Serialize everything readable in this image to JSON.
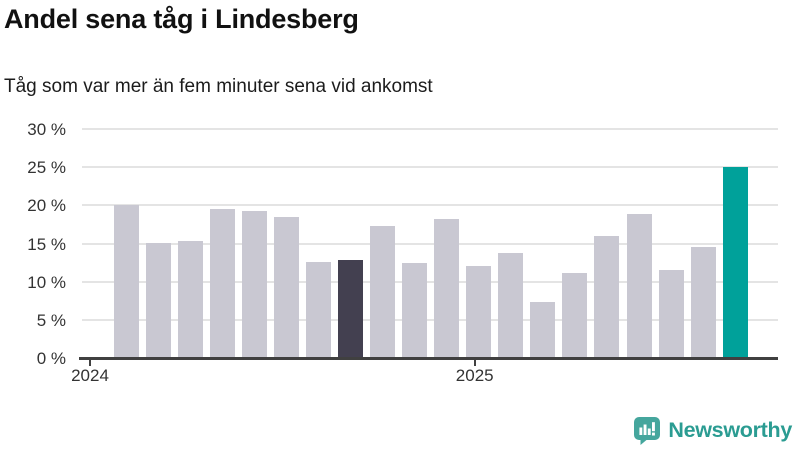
{
  "header": {
    "title": "Andel sena tåg i Lindesberg",
    "subtitle": "Tåg som var mer än fem minuter sena vid ankomst"
  },
  "logo": {
    "text": "Newsworthy",
    "icon": "newsworthy-speech-bubble-bar-chart-icon"
  },
  "colors": {
    "bar_default": "#c9c8d2",
    "bar_highlight_dark": "#434050",
    "bar_highlight_teal": "#00a19a",
    "gridline": "#e4e4e4",
    "axis": "#404040",
    "tick_label": "#333333",
    "logo_teal": "#2b9c92",
    "logo_icon_teal": "#45a69d"
  },
  "chart_data": {
    "type": "bar",
    "title": "Andel sena tåg i Lindesberg",
    "subtitle": "Tåg som var mer än fem minuter sena vid ankomst",
    "unit": "percent",
    "x": [
      "2024-01",
      "2024-02",
      "2024-03",
      "2024-04",
      "2024-05",
      "2024-06",
      "2024-07",
      "2024-08",
      "2024-09",
      "2024-10",
      "2024-11",
      "2024-12",
      "2025-01",
      "2025-02",
      "2025-03",
      "2025-04",
      "2025-05",
      "2025-06",
      "2025-07",
      "2025-08"
    ],
    "values": [
      20.0,
      15.1,
      15.4,
      19.5,
      19.3,
      18.5,
      12.6,
      12.9,
      17.3,
      12.5,
      18.2,
      12.0,
      13.8,
      7.4,
      11.2,
      16.0,
      18.9,
      11.5,
      14.5,
      25.0
    ],
    "highlight_dark_index": 7,
    "highlight_teal_index": 19,
    "grid": true,
    "legend": "none",
    "ylim": [
      0,
      30
    ],
    "yticks": [
      {
        "value": 30,
        "label": "30 %"
      },
      {
        "value": 25,
        "label": "25 %"
      },
      {
        "value": 20,
        "label": "20 %"
      },
      {
        "value": 15,
        "label": "15 %"
      },
      {
        "value": 10,
        "label": "10 %"
      },
      {
        "value": 5,
        "label": "5 %"
      },
      {
        "value": 0,
        "label": "0 %"
      }
    ],
    "xticks": [
      {
        "label": "2024",
        "month_index": 0
      },
      {
        "label": "2025",
        "month_index": 12
      }
    ]
  }
}
